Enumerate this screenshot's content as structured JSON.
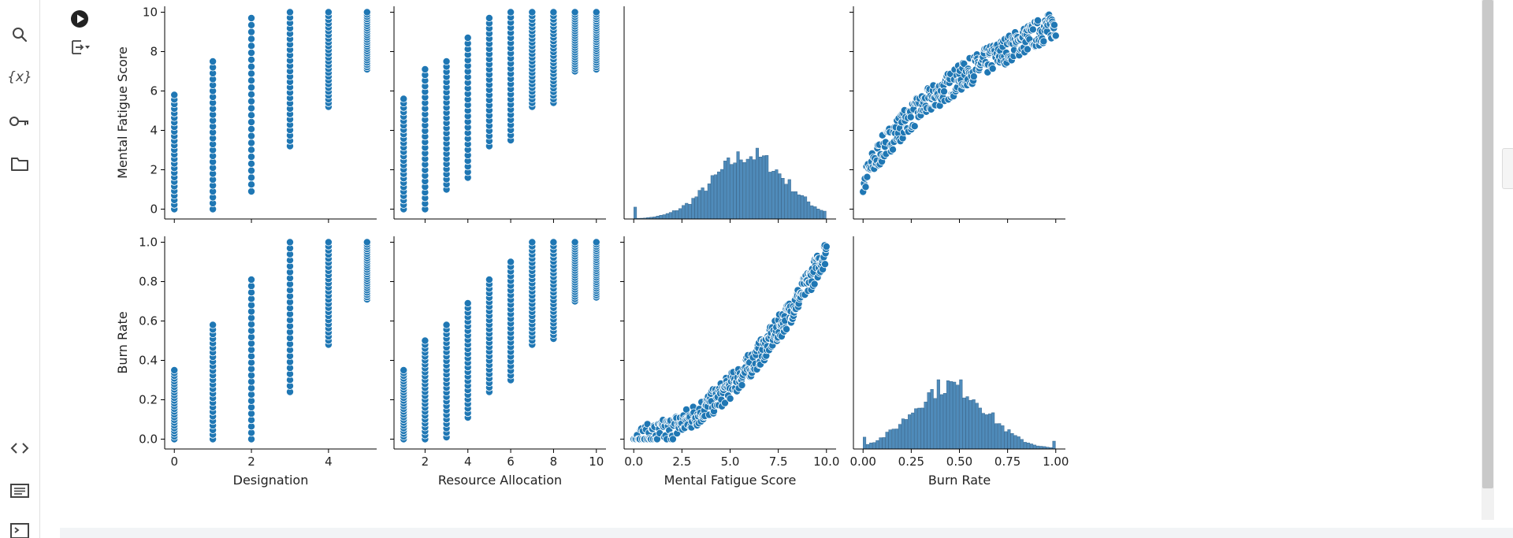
{
  "sidebar": {
    "icons": [
      "search-icon",
      "variables-icon",
      "key-icon",
      "folder-icon",
      "code-icon",
      "command-palette-icon",
      "terminal-icon"
    ]
  },
  "cell": {
    "run_icon": "play-icon",
    "output_icon": "output-toggle-icon"
  },
  "colors": {
    "point": "#1f77b4",
    "point_edge": "#ffffff",
    "hist_bar": "#4f8bba",
    "axis": "#000000",
    "sidebar_icon": "#444444"
  },
  "chart_data": [
    {
      "type": "scatter",
      "panel": "row1-col1",
      "xlabel": "",
      "ylabel": "Mental Fatigue Score",
      "xlim": [
        -0.25,
        5.25
      ],
      "ylim": [
        -0.5,
        10.3
      ],
      "xticks": [
        0,
        2,
        4
      ],
      "yticks": [
        0,
        2,
        4,
        6,
        8,
        10
      ],
      "columns": [
        {
          "x": 0,
          "ymin": 0,
          "ymax": 5.8
        },
        {
          "x": 1,
          "ymin": 0,
          "ymax": 7.5
        },
        {
          "x": 2,
          "ymin": 0.9,
          "ymax": 9.7
        },
        {
          "x": 3,
          "ymin": 3.2,
          "ymax": 10
        },
        {
          "x": 4,
          "ymin": 5.2,
          "ymax": 10
        },
        {
          "x": 5,
          "ymin": 7.1,
          "ymax": 10
        }
      ]
    },
    {
      "type": "scatter",
      "panel": "row1-col2",
      "xlabel": "",
      "ylabel": "",
      "xlim": [
        0.55,
        10.45
      ],
      "ylim": [
        -0.5,
        10.3
      ],
      "xticks": [
        2,
        4,
        6,
        8,
        10
      ],
      "yticks": [
        0,
        2,
        4,
        6,
        8,
        10
      ],
      "columns": [
        {
          "x": 1,
          "ymin": 0,
          "ymax": 5.6
        },
        {
          "x": 2,
          "ymin": 0,
          "ymax": 7.1
        },
        {
          "x": 3,
          "ymin": 1.0,
          "ymax": 7.5
        },
        {
          "x": 4,
          "ymin": 1.6,
          "ymax": 8.7
        },
        {
          "x": 5,
          "ymin": 3.2,
          "ymax": 9.7
        },
        {
          "x": 6,
          "ymin": 3.5,
          "ymax": 10
        },
        {
          "x": 7,
          "ymin": 5.2,
          "ymax": 10
        },
        {
          "x": 8,
          "ymin": 5.4,
          "ymax": 10
        },
        {
          "x": 9,
          "ymin": 7.0,
          "ymax": 10
        },
        {
          "x": 10,
          "ymin": 7.1,
          "ymax": 10
        }
      ]
    },
    {
      "type": "bar",
      "panel": "row1-col3",
      "xlabel": "",
      "ylabel": "",
      "xlim": [
        -0.5,
        10.5
      ],
      "xticks": [
        0,
        2.5,
        5,
        7.5,
        10
      ],
      "histogram_range": [
        0,
        10
      ],
      "histogram_peak": 6,
      "histogram_spread": 1.9
    },
    {
      "type": "scatter",
      "panel": "row1-col4",
      "xlabel": "",
      "ylabel": "",
      "xlim": [
        -0.05,
        1.05
      ],
      "ylim": [
        -0.5,
        10.3
      ],
      "xticks": [
        0,
        0.25,
        0.5,
        0.75,
        1
      ],
      "yticks": [
        0,
        2,
        4,
        6,
        8,
        10
      ],
      "curve": "mental_from_burn"
    },
    {
      "type": "scatter",
      "panel": "row2-col1",
      "xlabel": "Designation",
      "ylabel": "Burn Rate",
      "xlim": [
        -0.25,
        5.25
      ],
      "ylim": [
        -0.05,
        1.03
      ],
      "xticks": [
        0,
        2,
        4
      ],
      "yticks": [
        0,
        0.2,
        0.4,
        0.6,
        0.8,
        1
      ],
      "xticklabels": [
        "0",
        "2",
        "4"
      ],
      "yticklabels": [
        "0.0",
        "0.2",
        "0.4",
        "0.6",
        "0.8",
        "1.0"
      ],
      "columns": [
        {
          "x": 0,
          "ymin": 0,
          "ymax": 0.35
        },
        {
          "x": 1,
          "ymin": 0,
          "ymax": 0.58
        },
        {
          "x": 2,
          "ymin": 0,
          "ymax": 0.81
        },
        {
          "x": 3,
          "ymin": 0.24,
          "ymax": 1.0
        },
        {
          "x": 4,
          "ymin": 0.48,
          "ymax": 1.0
        },
        {
          "x": 5,
          "ymin": 0.71,
          "ymax": 1.0
        }
      ]
    },
    {
      "type": "scatter",
      "panel": "row2-col2",
      "xlabel": "Resource Allocation",
      "ylabel": "",
      "xlim": [
        0.55,
        10.45
      ],
      "ylim": [
        -0.05,
        1.03
      ],
      "xticks": [
        2,
        4,
        6,
        8,
        10
      ],
      "yticks": [
        0,
        0.2,
        0.4,
        0.6,
        0.8,
        1
      ],
      "xticklabels": [
        "2",
        "4",
        "6",
        "8",
        "10"
      ],
      "columns": [
        {
          "x": 1,
          "ymin": 0,
          "ymax": 0.35
        },
        {
          "x": 2,
          "ymin": 0,
          "ymax": 0.5
        },
        {
          "x": 3,
          "ymin": 0.01,
          "ymax": 0.58
        },
        {
          "x": 4,
          "ymin": 0.11,
          "ymax": 0.69
        },
        {
          "x": 5,
          "ymin": 0.24,
          "ymax": 0.81
        },
        {
          "x": 6,
          "ymin": 0.3,
          "ymax": 0.9
        },
        {
          "x": 7,
          "ymin": 0.48,
          "ymax": 1.0
        },
        {
          "x": 8,
          "ymin": 0.51,
          "ymax": 1.0
        },
        {
          "x": 9,
          "ymin": 0.7,
          "ymax": 1.0
        },
        {
          "x": 10,
          "ymin": 0.72,
          "ymax": 1.0
        }
      ]
    },
    {
      "type": "scatter",
      "panel": "row2-col3",
      "xlabel": "Mental Fatigue Score",
      "ylabel": "",
      "xlim": [
        -0.5,
        10.5
      ],
      "ylim": [
        -0.05,
        1.03
      ],
      "xticks": [
        0,
        2.5,
        5,
        7.5,
        10
      ],
      "yticks": [
        0,
        0.2,
        0.4,
        0.6,
        0.8,
        1
      ],
      "xticklabels": [
        "0.0",
        "2.5",
        "5.0",
        "7.5",
        "10.0"
      ],
      "curve": "burn_from_mental"
    },
    {
      "type": "bar",
      "panel": "row2-col4",
      "xlabel": "Burn Rate",
      "ylabel": "",
      "xlim": [
        -0.05,
        1.05
      ],
      "xticks": [
        0,
        0.25,
        0.5,
        0.75,
        1
      ],
      "xticklabels": [
        "0.00",
        "0.25",
        "0.50",
        "0.75",
        "1.00"
      ],
      "histogram_range": [
        0,
        1
      ],
      "histogram_peak": 0.45,
      "histogram_spread": 0.19
    }
  ]
}
